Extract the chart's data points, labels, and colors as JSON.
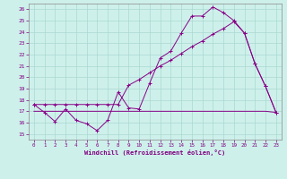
{
  "xlabel": "Windchill (Refroidissement éolien,°C)",
  "background_color": "#cef0eb",
  "grid_color": "#aad8d0",
  "line_color": "#880088",
  "x_values": [
    0,
    1,
    2,
    3,
    4,
    5,
    6,
    7,
    8,
    9,
    10,
    11,
    12,
    13,
    14,
    15,
    16,
    17,
    18,
    19,
    20,
    21,
    22,
    23
  ],
  "line1_y": [
    17.6,
    16.9,
    16.1,
    17.2,
    16.2,
    15.9,
    15.3,
    16.2,
    18.7,
    17.3,
    17.2,
    19.5,
    21.7,
    22.3,
    23.9,
    25.4,
    25.4,
    26.2,
    25.7,
    25.0,
    23.9,
    21.2,
    19.2,
    16.9
  ],
  "line2_y": [
    17.6,
    17.6,
    17.6,
    17.6,
    17.6,
    17.6,
    17.6,
    17.6,
    17.6,
    19.3,
    19.8,
    20.4,
    21.0,
    21.5,
    22.1,
    22.7,
    23.2,
    23.8,
    24.3,
    24.9,
    23.9,
    21.2,
    19.2,
    16.9
  ],
  "line3_y": [
    17.0,
    17.0,
    17.0,
    17.0,
    17.0,
    17.0,
    17.0,
    17.0,
    17.0,
    17.0,
    17.0,
    17.0,
    17.0,
    17.0,
    17.0,
    17.0,
    17.0,
    17.0,
    17.0,
    17.0,
    17.0,
    17.0,
    17.0,
    16.9
  ],
  "ylim": [
    14.5,
    26.5
  ],
  "xlim": [
    -0.5,
    23.5
  ],
  "yticks": [
    15,
    16,
    17,
    18,
    19,
    20,
    21,
    22,
    23,
    24,
    25,
    26
  ],
  "xticks": [
    0,
    1,
    2,
    3,
    4,
    5,
    6,
    7,
    8,
    9,
    10,
    11,
    12,
    13,
    14,
    15,
    16,
    17,
    18,
    19,
    20,
    21,
    22,
    23
  ]
}
